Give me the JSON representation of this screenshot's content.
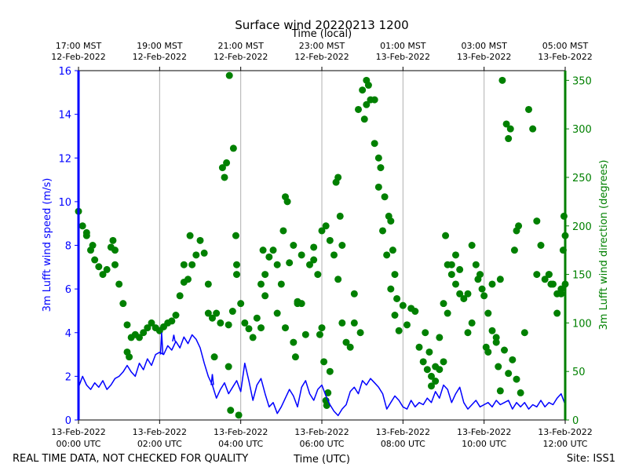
{
  "chart_data": {
    "type": "line",
    "title": "Surface wind 20220213 1200",
    "top_axis_label": "Time (local)",
    "xlabel": "Time (UTC)",
    "ylabel_left": "3m Lufft wind speed (m/s)",
    "ylabel_right": "3m Lufft wind direction (degrees)",
    "footer_left": "REAL TIME DATA, NOT CHECKED FOR QUALITY",
    "footer_right": "Site: ISS1",
    "xlim_hours": [
      0,
      12
    ],
    "ylim_left": [
      0,
      16
    ],
    "ylim_right": [
      0,
      360
    ],
    "y_ticks_left": [
      "0",
      "2",
      "4",
      "6",
      "8",
      "10",
      "12",
      "14",
      "16"
    ],
    "y_ticks_right": [
      "0",
      "50",
      "100",
      "150",
      "200",
      "250",
      "300",
      "350"
    ],
    "grid": "vertical",
    "colors": {
      "speed": "#0000ff",
      "direction": "#008000",
      "axis": "#000000",
      "grid": "#b0b0b0"
    },
    "x_ticks_bottom": [
      {
        "hour": 0,
        "date": "13-Feb-2022",
        "time": "00:00 UTC"
      },
      {
        "hour": 2,
        "date": "13-Feb-2022",
        "time": "02:00 UTC"
      },
      {
        "hour": 4,
        "date": "13-Feb-2022",
        "time": "04:00 UTC"
      },
      {
        "hour": 6,
        "date": "13-Feb-2022",
        "time": "06:00 UTC"
      },
      {
        "hour": 8,
        "date": "13-Feb-2022",
        "time": "08:00 UTC"
      },
      {
        "hour": 10,
        "date": "13-Feb-2022",
        "time": "10:00 UTC"
      },
      {
        "hour": 12,
        "date": "13-Feb-2022",
        "time": "12:00 UTC"
      }
    ],
    "x_ticks_top": [
      {
        "hour": 0,
        "time": "17:00 MST",
        "date": "12-Feb-2022"
      },
      {
        "hour": 2,
        "time": "19:00 MST",
        "date": "12-Feb-2022"
      },
      {
        "hour": 4,
        "time": "21:00 MST",
        "date": "12-Feb-2022"
      },
      {
        "hour": 6,
        "time": "23:00 MST",
        "date": "12-Feb-2022"
      },
      {
        "hour": 8,
        "time": "01:00 MST",
        "date": "13-Feb-2022"
      },
      {
        "hour": 10,
        "time": "03:00 MST",
        "date": "13-Feb-2022"
      },
      {
        "hour": 12,
        "time": "05:00 MST",
        "date": "13-Feb-2022"
      }
    ],
    "series": [
      {
        "name": "3m Lufft wind speed (m/s)",
        "axis": "left",
        "style": "line",
        "x": [
          0.0,
          0.1,
          0.2,
          0.3,
          0.4,
          0.5,
          0.6,
          0.7,
          0.8,
          0.9,
          1.0,
          1.1,
          1.2,
          1.3,
          1.4,
          1.5,
          1.6,
          1.7,
          1.8,
          1.9,
          2.0,
          2.1,
          2.2,
          2.3,
          2.4,
          2.5,
          2.6,
          2.7,
          2.8,
          2.9,
          3.0,
          3.1,
          3.2,
          3.3,
          3.4,
          3.5,
          3.6,
          3.7,
          3.8,
          3.9,
          4.0,
          4.1,
          4.2,
          4.3,
          4.4,
          4.5,
          4.6,
          4.7,
          4.8,
          4.9,
          5.0,
          5.1,
          5.2,
          5.3,
          5.4,
          5.5,
          5.6,
          5.7,
          5.8,
          5.9,
          6.0,
          6.1,
          6.2,
          6.3,
          6.4,
          6.5,
          6.6,
          6.7,
          6.8,
          6.9,
          7.0,
          7.1,
          7.2,
          7.3,
          7.4,
          7.5,
          7.6,
          7.7,
          7.8,
          7.9,
          8.0,
          8.1,
          8.2,
          8.3,
          8.4,
          8.5,
          8.6,
          8.7,
          8.8,
          8.9,
          9.0,
          9.1,
          9.2,
          9.3,
          9.4,
          9.5,
          9.6,
          9.7,
          9.8,
          9.9,
          10.0,
          10.1,
          10.2,
          10.3,
          10.4,
          10.5,
          10.6,
          10.7,
          10.8,
          10.9,
          11.0,
          11.1,
          11.2,
          11.3,
          11.4,
          11.5,
          11.6,
          11.7,
          11.8,
          11.9,
          12.0
        ],
        "values": [
          1.5,
          2.0,
          1.6,
          1.4,
          1.7,
          1.5,
          1.8,
          1.4,
          1.6,
          1.9,
          2.0,
          2.2,
          2.5,
          2.2,
          2.0,
          2.6,
          2.3,
          2.8,
          2.5,
          3.0,
          3.1,
          3.0,
          3.4,
          3.2,
          3.6,
          3.3,
          3.8,
          3.5,
          3.9,
          3.7,
          3.3,
          2.6,
          2.0,
          1.6,
          1.0,
          1.4,
          1.7,
          1.2,
          1.5,
          1.8,
          1.3,
          2.6,
          1.8,
          0.9,
          1.6,
          1.9,
          1.2,
          0.6,
          0.8,
          0.3,
          0.6,
          1.0,
          1.4,
          1.1,
          0.6,
          1.5,
          1.8,
          1.2,
          0.9,
          1.4,
          1.6,
          1.1,
          0.7,
          0.4,
          0.2,
          0.5,
          0.7,
          1.3,
          1.5,
          1.2,
          1.8,
          1.6,
          1.9,
          1.7,
          1.5,
          1.2,
          0.5,
          0.8,
          1.1,
          0.9,
          0.6,
          0.5,
          0.9,
          0.6,
          0.8,
          0.7,
          1.0,
          0.8,
          1.3,
          1.0,
          1.6,
          1.4,
          0.8,
          1.2,
          1.5,
          0.8,
          0.5,
          0.7,
          0.9,
          0.6,
          0.7,
          0.8,
          0.6,
          0.9,
          0.7,
          0.8,
          0.9,
          0.5,
          0.8,
          0.6,
          0.8,
          0.5,
          0.7,
          0.6,
          0.9,
          0.6,
          0.8,
          0.7,
          1.0,
          1.2,
          0.7
        ],
        "extra_spikes": [
          {
            "x": 2.05,
            "y": 4.0
          },
          {
            "x": 2.35,
            "y": 3.9
          },
          {
            "x": 3.3,
            "y": 2.1
          }
        ]
      },
      {
        "name": "3m Lufft wind direction (degrees)",
        "axis": "right",
        "style": "scatter",
        "x": [
          0.0,
          0.1,
          0.2,
          0.3,
          0.4,
          0.5,
          0.6,
          0.7,
          0.8,
          0.9,
          1.0,
          1.1,
          1.2,
          1.3,
          1.4,
          1.5,
          1.6,
          1.7,
          1.8,
          1.9,
          2.0,
          2.1,
          2.2,
          2.3,
          2.4,
          2.5,
          2.6,
          2.7,
          2.8,
          2.9,
          3.0,
          3.1,
          3.2,
          3.3,
          3.4,
          3.5,
          3.6,
          3.7,
          3.8,
          3.9,
          4.0,
          4.1,
          4.2,
          4.3,
          4.4,
          4.5,
          4.6,
          4.7,
          4.8,
          4.9,
          5.0,
          5.1,
          5.2,
          5.3,
          5.4,
          5.5,
          5.6,
          5.7,
          5.8,
          5.9,
          6.0,
          6.1,
          6.2,
          6.3,
          6.4,
          6.5,
          6.6,
          6.7,
          6.8,
          6.9,
          7.0,
          7.1,
          7.2,
          7.3,
          7.4,
          7.5,
          7.6,
          7.7,
          7.8,
          7.9,
          8.0,
          8.1,
          8.2,
          8.3,
          8.4,
          8.5,
          8.6,
          8.7,
          8.8,
          8.9,
          9.0,
          9.1,
          9.2,
          9.3,
          9.4,
          9.5,
          9.6,
          9.7,
          9.8,
          9.9,
          10.0,
          10.1,
          10.2,
          10.3,
          10.4,
          10.5,
          10.6,
          10.7,
          10.8,
          10.9,
          11.0,
          11.1,
          11.2,
          11.3,
          11.4,
          11.5,
          11.6,
          11.7,
          11.8,
          11.9,
          12.0
        ],
        "values": [
          215,
          200,
          190,
          175,
          165,
          158,
          150,
          155,
          178,
          160,
          140,
          120,
          98,
          85,
          88,
          85,
          90,
          95,
          100,
          95,
          92,
          96,
          100,
          102,
          108,
          128,
          142,
          145,
          160,
          170,
          185,
          172,
          140,
          105,
          110,
          100,
          250,
          98,
          112,
          150,
          120,
          100,
          94,
          85,
          105,
          95,
          128,
          168,
          175,
          160,
          140,
          95,
          162,
          180,
          122,
          120,
          88,
          160,
          165,
          150,
          195,
          200,
          185,
          170,
          145,
          100,
          80,
          75,
          100,
          320,
          340,
          350,
          330,
          285,
          240,
          195,
          170,
          135,
          108,
          92,
          118,
          98,
          115,
          112,
          75,
          60,
          52,
          45,
          40,
          52,
          60,
          110,
          160,
          140,
          130,
          125,
          130,
          180,
          160,
          150,
          128,
          110,
          92,
          80,
          145,
          72,
          48,
          62,
          42,
          28,
          90,
          320,
          300,
          205,
          180,
          145,
          150,
          140,
          130,
          135,
          140
        ],
        "extra_points": [
          {
            "x": 0.2,
            "y": 193
          },
          {
            "x": 0.35,
            "y": 180
          },
          {
            "x": 0.85,
            "y": 185
          },
          {
            "x": 0.9,
            "y": 175
          },
          {
            "x": 1.2,
            "y": 70
          },
          {
            "x": 1.25,
            "y": 65
          },
          {
            "x": 2.6,
            "y": 160
          },
          {
            "x": 2.75,
            "y": 190
          },
          {
            "x": 3.2,
            "y": 110
          },
          {
            "x": 3.35,
            "y": 65
          },
          {
            "x": 3.55,
            "y": 260
          },
          {
            "x": 3.65,
            "y": 265
          },
          {
            "x": 3.75,
            "y": 10
          },
          {
            "x": 3.7,
            "y": 55
          },
          {
            "x": 3.72,
            "y": 355
          },
          {
            "x": 3.82,
            "y": 280
          },
          {
            "x": 3.88,
            "y": 190
          },
          {
            "x": 3.9,
            "y": 160
          },
          {
            "x": 3.95,
            "y": 5
          },
          {
            "x": 4.5,
            "y": 140
          },
          {
            "x": 4.55,
            "y": 175
          },
          {
            "x": 4.6,
            "y": 150
          },
          {
            "x": 4.9,
            "y": 110
          },
          {
            "x": 5.05,
            "y": 195
          },
          {
            "x": 5.1,
            "y": 230
          },
          {
            "x": 5.15,
            "y": 225
          },
          {
            "x": 5.3,
            "y": 80
          },
          {
            "x": 5.35,
            "y": 65
          },
          {
            "x": 5.4,
            "y": 120
          },
          {
            "x": 5.5,
            "y": 170
          },
          {
            "x": 5.8,
            "y": 178
          },
          {
            "x": 5.95,
            "y": 88
          },
          {
            "x": 6.0,
            "y": 95
          },
          {
            "x": 6.05,
            "y": 60
          },
          {
            "x": 6.1,
            "y": 20
          },
          {
            "x": 6.12,
            "y": 15
          },
          {
            "x": 6.15,
            "y": 28
          },
          {
            "x": 6.2,
            "y": 50
          },
          {
            "x": 6.35,
            "y": 245
          },
          {
            "x": 6.4,
            "y": 250
          },
          {
            "x": 6.45,
            "y": 210
          },
          {
            "x": 6.5,
            "y": 180
          },
          {
            "x": 6.8,
            "y": 130
          },
          {
            "x": 6.95,
            "y": 90
          },
          {
            "x": 7.05,
            "y": 310
          },
          {
            "x": 7.1,
            "y": 325
          },
          {
            "x": 7.15,
            "y": 345
          },
          {
            "x": 7.3,
            "y": 330
          },
          {
            "x": 7.4,
            "y": 270
          },
          {
            "x": 7.45,
            "y": 260
          },
          {
            "x": 7.55,
            "y": 230
          },
          {
            "x": 7.65,
            "y": 210
          },
          {
            "x": 7.7,
            "y": 205
          },
          {
            "x": 7.75,
            "y": 175
          },
          {
            "x": 7.8,
            "y": 150
          },
          {
            "x": 7.85,
            "y": 125
          },
          {
            "x": 8.55,
            "y": 90
          },
          {
            "x": 8.65,
            "y": 70
          },
          {
            "x": 8.7,
            "y": 35
          },
          {
            "x": 8.8,
            "y": 55
          },
          {
            "x": 8.9,
            "y": 85
          },
          {
            "x": 9.0,
            "y": 120
          },
          {
            "x": 9.05,
            "y": 190
          },
          {
            "x": 9.1,
            "y": 160
          },
          {
            "x": 9.2,
            "y": 150
          },
          {
            "x": 9.3,
            "y": 170
          },
          {
            "x": 9.4,
            "y": 155
          },
          {
            "x": 9.6,
            "y": 90
          },
          {
            "x": 9.7,
            "y": 100
          },
          {
            "x": 9.85,
            "y": 145
          },
          {
            "x": 9.95,
            "y": 135
          },
          {
            "x": 10.05,
            "y": 75
          },
          {
            "x": 10.1,
            "y": 70
          },
          {
            "x": 10.2,
            "y": 140
          },
          {
            "x": 10.3,
            "y": 85
          },
          {
            "x": 10.35,
            "y": 55
          },
          {
            "x": 10.4,
            "y": 30
          },
          {
            "x": 10.45,
            "y": 350
          },
          {
            "x": 10.55,
            "y": 305
          },
          {
            "x": 10.6,
            "y": 290
          },
          {
            "x": 10.65,
            "y": 300
          },
          {
            "x": 10.75,
            "y": 175
          },
          {
            "x": 10.8,
            "y": 195
          },
          {
            "x": 10.85,
            "y": 200
          },
          {
            "x": 11.3,
            "y": 150
          },
          {
            "x": 11.6,
            "y": 150
          },
          {
            "x": 11.65,
            "y": 140
          },
          {
            "x": 11.8,
            "y": 110
          },
          {
            "x": 11.9,
            "y": 130
          },
          {
            "x": 11.95,
            "y": 175
          },
          {
            "x": 11.97,
            "y": 210
          },
          {
            "x": 12.0,
            "y": 190
          }
        ]
      }
    ]
  }
}
